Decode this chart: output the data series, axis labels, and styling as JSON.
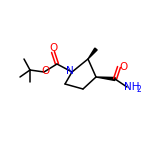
{
  "bg_color": "#ffffff",
  "bond_color": "#000000",
  "atom_colors": {
    "O": "#ff0000",
    "N": "#0000ff",
    "C": "#000000"
  },
  "font_size_atoms": 7.5,
  "font_size_small": 5.5,
  "lw": 1.1
}
